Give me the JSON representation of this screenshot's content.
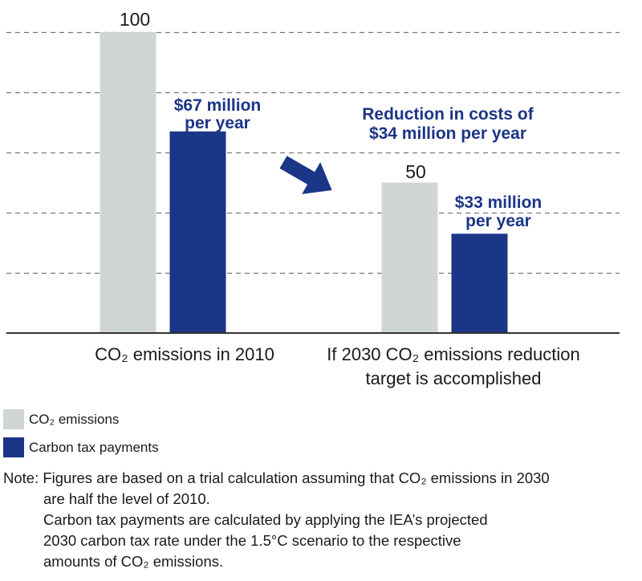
{
  "colors": {
    "emissions": "#d0d5d5",
    "tax": "#1b3587",
    "grid": "#777777",
    "arrow": "#1b3587"
  },
  "chart_data": {
    "type": "bar",
    "categories": [
      "CO₂ emissions in 2010",
      "If 2030 CO₂ emissions reduction target is accomplished"
    ],
    "series": [
      {
        "name": "CO₂ emissions",
        "values": [
          100,
          50
        ]
      },
      {
        "name": "Carbon tax payments",
        "values": [
          67,
          33
        ],
        "unit": "$ million per year"
      }
    ],
    "ylim": [
      0,
      100
    ],
    "grid": true,
    "legend_position": "bottom-left"
  },
  "data_labels": {
    "emissions": [
      "100",
      "50"
    ],
    "tax": [
      [
        "$67 million",
        "per year"
      ],
      [
        "$33 million",
        "per year"
      ]
    ]
  },
  "category_labels": {
    "cat1": "CO₂ emissions in 2010",
    "cat2_line1": "If 2030 CO₂ emissions reduction",
    "cat2_line2": "target is accomplished"
  },
  "annotation": {
    "line1": "Reduction in costs of",
    "line2": "$34 million per year",
    "icon": "arrow-down-right-icon"
  },
  "legend": {
    "emissions": "CO₂ emissions",
    "tax": "Carbon tax payments"
  },
  "note": {
    "line1": "Note: Figures are based on a trial calculation assuming that CO₂ emissions in 2030",
    "line2": "are half the level of 2010.",
    "line3": "Carbon tax payments are calculated by applying the IEA’s projected",
    "line4": "2030 carbon tax rate under the 1.5°C scenario to the respective",
    "line5": "amounts of CO₂ emissions."
  }
}
